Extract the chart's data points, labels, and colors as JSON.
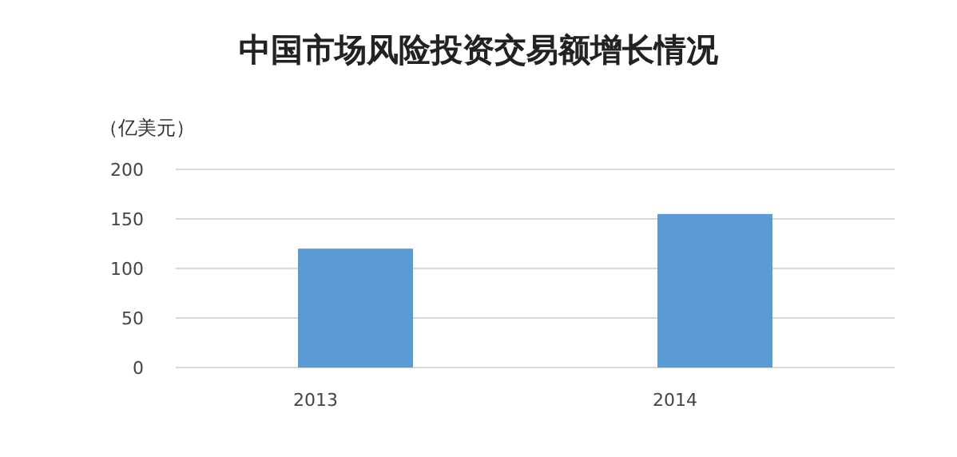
{
  "chart_data": {
    "type": "bar",
    "title": "中国市场风险投资交易额增长情况",
    "ylabel": "（亿美元）",
    "categories": [
      "2013",
      "2014"
    ],
    "values": [
      120,
      155
    ],
    "color": "#5b9bd5",
    "ylim": [
      0,
      200
    ],
    "yticks": [
      0,
      50,
      100,
      150,
      200
    ],
    "grid": "y"
  }
}
